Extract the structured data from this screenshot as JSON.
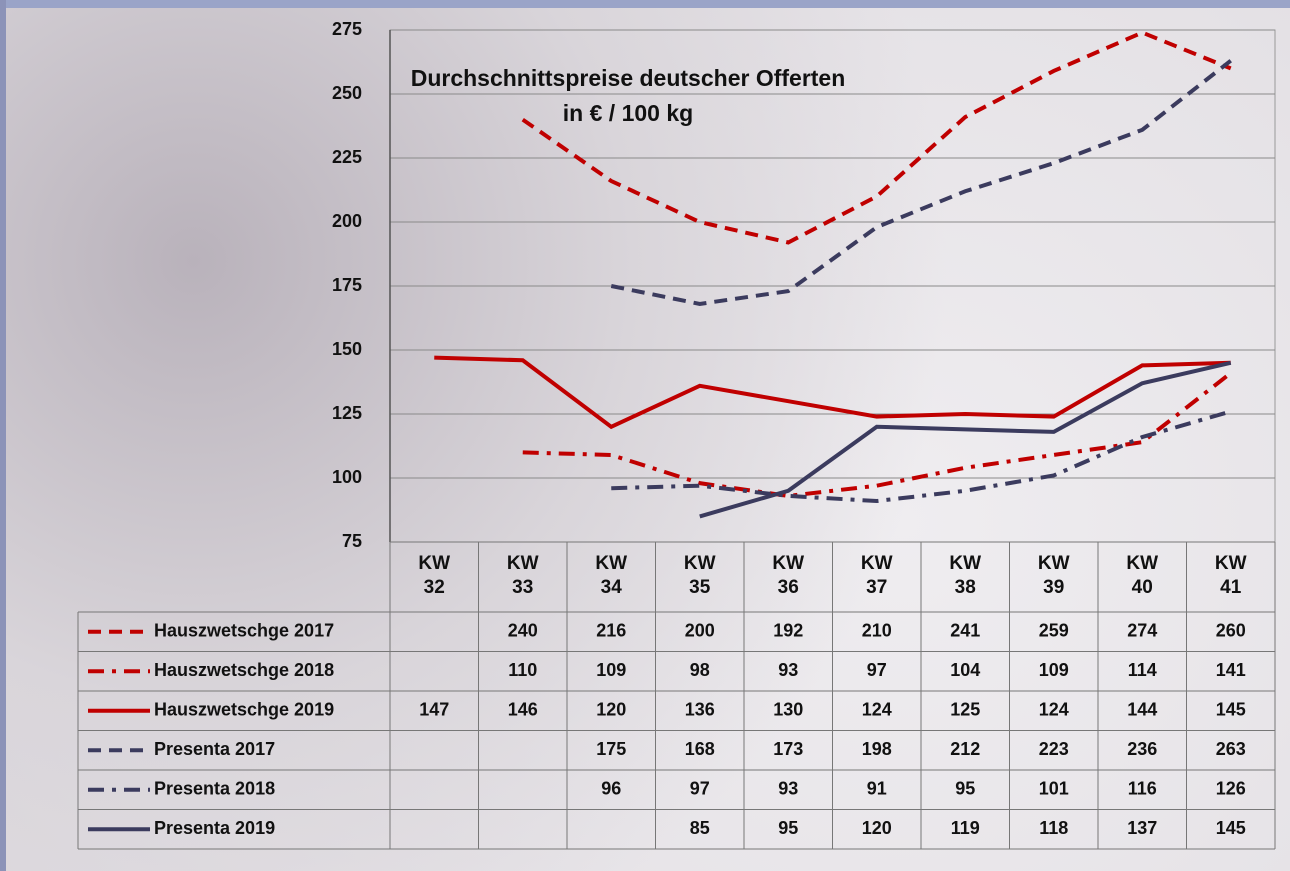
{
  "chart_data": {
    "type": "line",
    "title": "Durchschnittspreise deutscher Offerten",
    "subtitle": "in € / 100 kg",
    "categories": [
      "KW 32",
      "KW 33",
      "KW 34",
      "KW 35",
      "KW 36",
      "KW 37",
      "KW 38",
      "KW 39",
      "KW 40",
      "KW 41"
    ],
    "series": [
      {
        "name": "Hauszwetschge 2017",
        "color": "#c00000",
        "line_style": "dashed",
        "values": [
          null,
          240,
          216,
          200,
          192,
          210,
          241,
          259,
          274,
          260
        ]
      },
      {
        "name": "Hauszwetschge 2018",
        "color": "#c00000",
        "line_style": "dashdot",
        "values": [
          null,
          110,
          109,
          98,
          93,
          97,
          104,
          109,
          114,
          141
        ]
      },
      {
        "name": "Hauszwetschge 2019",
        "color": "#c00000",
        "line_style": "solid",
        "values": [
          147,
          146,
          120,
          136,
          130,
          124,
          125,
          124,
          144,
          145
        ]
      },
      {
        "name": "Presenta 2017",
        "color": "#3b3b5e",
        "line_style": "dashed",
        "values": [
          null,
          null,
          175,
          168,
          173,
          198,
          212,
          223,
          236,
          263
        ]
      },
      {
        "name": "Presenta 2018",
        "color": "#3b3b5e",
        "line_style": "dashdot",
        "values": [
          null,
          null,
          96,
          97,
          93,
          91,
          95,
          101,
          116,
          126
        ]
      },
      {
        "name": "Presenta 2019",
        "color": "#3b3b5e",
        "line_style": "solid",
        "values": [
          null,
          null,
          null,
          85,
          95,
          120,
          119,
          118,
          137,
          145
        ]
      }
    ],
    "ylim": [
      75,
      275
    ],
    "yticks": [
      75,
      100,
      125,
      150,
      175,
      200,
      225,
      250,
      275
    ],
    "grid": true,
    "data_table": true
  }
}
